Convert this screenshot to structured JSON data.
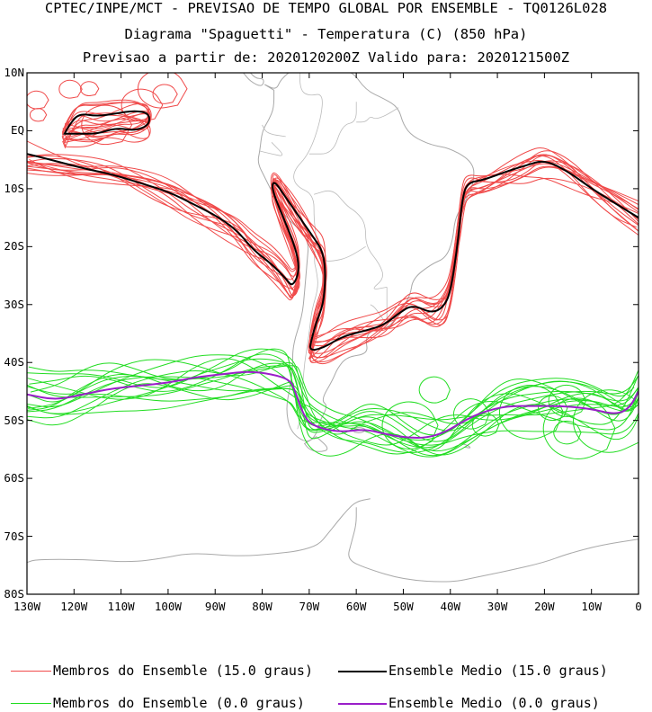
{
  "header": {
    "line1": "CPTEC/INPE/MCT - PREVISAO DE TEMPO GLOBAL POR ENSEMBLE - TQ0126L028",
    "line2": "Diagrama \"Spaguetti\" - Temperatura (C) (850 hPa)",
    "line3": "Previsao a partir de: 2020120200Z  Valido para: 2020121500Z"
  },
  "map": {
    "extent": {
      "lon": [
        -130,
        0
      ],
      "lat": [
        -80,
        10
      ]
    },
    "lat_ticks": [
      {
        "value": 10,
        "label": "10N"
      },
      {
        "value": 0,
        "label": "EQ"
      },
      {
        "value": -10,
        "label": "10S"
      },
      {
        "value": -20,
        "label": "20S"
      },
      {
        "value": -30,
        "label": "30S"
      },
      {
        "value": -40,
        "label": "40S"
      },
      {
        "value": -50,
        "label": "50S"
      },
      {
        "value": -60,
        "label": "60S"
      },
      {
        "value": -70,
        "label": "70S"
      },
      {
        "value": -80,
        "label": "80S"
      }
    ],
    "lon_ticks": [
      {
        "value": -130,
        "label": "130W"
      },
      {
        "value": -120,
        "label": "120W"
      },
      {
        "value": -110,
        "label": "110W"
      },
      {
        "value": -100,
        "label": "100W"
      },
      {
        "value": -90,
        "label": "90W"
      },
      {
        "value": -80,
        "label": "80W"
      },
      {
        "value": -70,
        "label": "70W"
      },
      {
        "value": -60,
        "label": "60W"
      },
      {
        "value": -50,
        "label": "50W"
      },
      {
        "value": -40,
        "label": "40W"
      },
      {
        "value": -30,
        "label": "30W"
      },
      {
        "value": -20,
        "label": "20W"
      },
      {
        "value": -10,
        "label": "10W"
      },
      {
        "value": 0,
        "label": "0"
      }
    ],
    "colors": {
      "coastline": "#a9a9a9",
      "member_15": "#f04a4a",
      "mean_15": "#000000",
      "member_0": "#22dd22",
      "mean_0": "#9a1fc9"
    },
    "mean_15_isotherm": [
      [
        -130,
        -4
      ],
      [
        -125,
        -5
      ],
      [
        -118,
        -6.5
      ],
      [
        -112,
        -7.5
      ],
      [
        -106,
        -9
      ],
      [
        -100,
        -10.5
      ],
      [
        -95,
        -12.5
      ],
      [
        -89,
        -15
      ],
      [
        -85,
        -17.5
      ],
      [
        -82,
        -20.5
      ],
      [
        -78,
        -23
      ],
      [
        -75,
        -25.5
      ],
      [
        -73.5,
        -27
      ],
      [
        -72,
        -24
      ],
      [
        -73,
        -20
      ],
      [
        -75.5,
        -15
      ],
      [
        -78,
        -10
      ],
      [
        -77.5,
        -8.5
      ],
      [
        -75,
        -11.5
      ],
      [
        -72,
        -15
      ],
      [
        -69,
        -18.5
      ],
      [
        -67,
        -21
      ],
      [
        -66.5,
        -25
      ],
      [
        -67,
        -30
      ],
      [
        -68.5,
        -33
      ],
      [
        -69.5,
        -36
      ],
      [
        -70,
        -38
      ],
      [
        -67,
        -37.5
      ],
      [
        -63,
        -35.5
      ],
      [
        -58,
        -34.5
      ],
      [
        -54,
        -33.5
      ],
      [
        -51,
        -31.5
      ],
      [
        -48,
        -30
      ],
      [
        -44,
        -31.5
      ],
      [
        -41.5,
        -30.5
      ],
      [
        -40,
        -28
      ],
      [
        -38.5,
        -20
      ],
      [
        -37.5,
        -12
      ],
      [
        -36.5,
        -9
      ],
      [
        -33,
        -8.5
      ],
      [
        -28,
        -7
      ],
      [
        -24,
        -6
      ],
      [
        -20,
        -5
      ],
      [
        -15,
        -7
      ],
      [
        -10,
        -10
      ],
      [
        -5,
        -12.5
      ],
      [
        0,
        -15
      ]
    ],
    "mean_15_closed": [
      [
        -122,
        -0.5
      ],
      [
        -121,
        1
      ],
      [
        -119,
        3
      ],
      [
        -115,
        2.5
      ],
      [
        -111,
        3
      ],
      [
        -107,
        3.5
      ],
      [
        -104,
        3
      ],
      [
        -104,
        1
      ],
      [
        -107,
        0
      ],
      [
        -111,
        0.5
      ],
      [
        -115,
        -0.5
      ],
      [
        -118,
        -0.5
      ],
      [
        -122,
        -0.5
      ]
    ],
    "mean_0_isotherm": [
      [
        -130,
        -45.5
      ],
      [
        -124,
        -46.5
      ],
      [
        -118,
        -45.5
      ],
      [
        -112,
        -44.5
      ],
      [
        -106,
        -44
      ],
      [
        -100,
        -43.5
      ],
      [
        -94,
        -42.5
      ],
      [
        -88,
        -42
      ],
      [
        -83,
        -41.5
      ],
      [
        -78,
        -42
      ],
      [
        -74,
        -43
      ],
      [
        -73,
        -45
      ],
      [
        -71.5,
        -48.5
      ],
      [
        -70,
        -50.5
      ],
      [
        -67,
        -51.5
      ],
      [
        -63,
        -52
      ],
      [
        -58,
        -51.5
      ],
      [
        -53,
        -52.5
      ],
      [
        -49,
        -53
      ],
      [
        -45,
        -53
      ],
      [
        -41,
        -52
      ],
      [
        -37,
        -50
      ],
      [
        -33,
        -48.5
      ],
      [
        -28,
        -47.5
      ],
      [
        -22,
        -47.5
      ],
      [
        -16,
        -47.5
      ],
      [
        -10,
        -48
      ],
      [
        -5,
        -49
      ],
      [
        -2,
        -48
      ],
      [
        0,
        -45
      ]
    ]
  },
  "legend": {
    "items": [
      {
        "label": "Membros do Ensemble (15.0 graus)",
        "style": "member_15"
      },
      {
        "label": "Ensemble Medio (15.0 graus)",
        "style": "mean_15"
      },
      {
        "label": "Membros do Ensemble (0.0 graus)",
        "style": "member_0"
      },
      {
        "label": "Ensemble Medio (0.0 graus)",
        "style": "mean_0"
      }
    ]
  }
}
